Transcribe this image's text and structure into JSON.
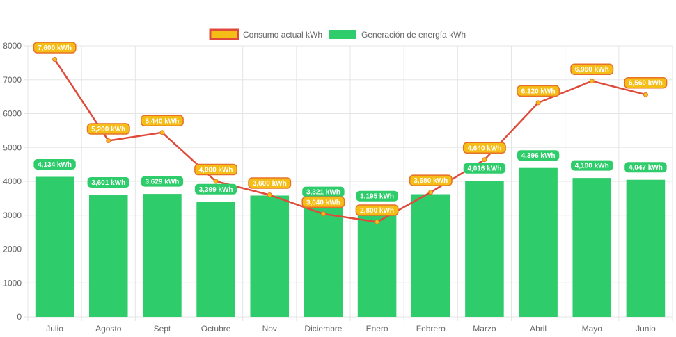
{
  "chart_data": {
    "type": "bar",
    "categories": [
      "Julio",
      "Agosto",
      "Sept",
      "Octubre",
      "Nov",
      "Diciembre",
      "Enero",
      "Febrero",
      "Marzo",
      "Abril",
      "Mayo",
      "Junio"
    ],
    "series": [
      {
        "name": "Consumo actual kWh",
        "type": "line",
        "color": "#e04a3a",
        "label_fill": "#f5be16",
        "label_border": "#e8712a",
        "values": [
          7600,
          5200,
          5440,
          4000,
          3600,
          3040,
          2800,
          3680,
          4640,
          6320,
          6960,
          6560
        ],
        "labels": [
          "7,600 kWh",
          "5,200 kWh",
          "5,440 kWh",
          "4,000 kWh",
          "3,600 kWh",
          "3,040 kWh",
          "2,800 kWh",
          "3,680 kWh",
          "4,640 kWh",
          "6,320 kWh",
          "6,960 kWh",
          "6,560 kWh"
        ]
      },
      {
        "name": "Generación de energía kWh",
        "type": "bar",
        "color": "#2ecc6a",
        "values": [
          4134,
          3601,
          3629,
          3399,
          3580,
          3321,
          3195,
          3620,
          4016,
          4396,
          4100,
          4047
        ],
        "labels": [
          "4,134 kWh",
          "3,601 kWh",
          "3,629 kWh",
          "3,399 kWh",
          "",
          "3,321 kWh",
          "3,195 kWh",
          "",
          "4,016 kWh",
          "4,396 kWh",
          "4,100 kWh",
          "4,047 kWh"
        ]
      }
    ],
    "ylim": [
      0,
      8000
    ],
    "yticks": [
      "0",
      "1000",
      "2000",
      "3000",
      "4000",
      "5000",
      "6000",
      "7000",
      "8000"
    ],
    "ytick_values": [
      0,
      1000,
      2000,
      3000,
      4000,
      5000,
      6000,
      7000,
      8000
    ],
    "title": "",
    "xlabel": "",
    "ylabel": "",
    "legend": "top-center",
    "grid": true
  }
}
